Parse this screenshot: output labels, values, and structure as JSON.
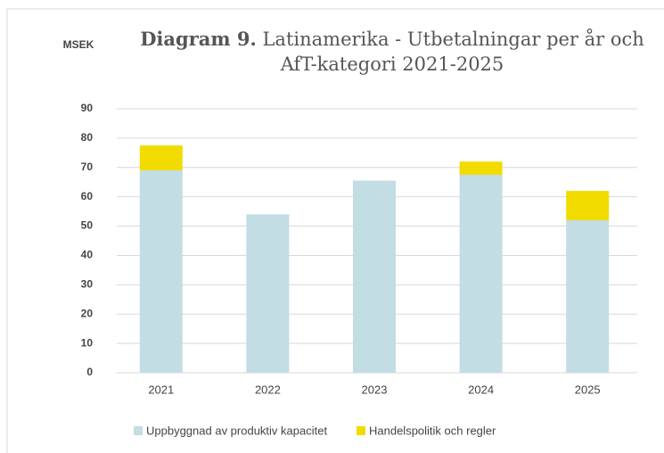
{
  "chart_data": {
    "type": "stacked_bar",
    "title_bold": "Diagram 9.",
    "title": "Latinamerika - Utbetalningar per år och AfT-kategori 2021-2025",
    "ylabel": "MSEK",
    "categories": [
      "2021",
      "2022",
      "2023",
      "2024",
      "2025"
    ],
    "series": [
      {
        "name": "Uppbyggnad av produktiv kapacitet",
        "color": "#c2dde3",
        "values": [
          69,
          54,
          65.5,
          67.5,
          52
        ]
      },
      {
        "name": "Handelspolitik och regler",
        "color": "#f2dc00",
        "values": [
          8.5,
          0,
          0,
          4.5,
          10
        ]
      }
    ],
    "ylim": [
      0,
      90
    ],
    "yticks": [
      0,
      10,
      20,
      30,
      40,
      50,
      60,
      70,
      80,
      90
    ],
    "grid": true,
    "legend": "bottom"
  }
}
